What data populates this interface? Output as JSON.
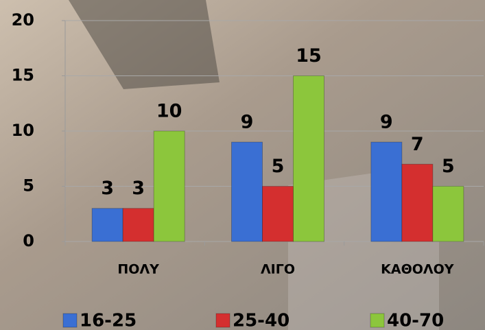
{
  "chart_data": {
    "type": "bar",
    "categories": [
      "ΠΟΛΥ",
      "ΛΙΓΟ",
      "ΚΑΘΟΛΟΥ"
    ],
    "series": [
      {
        "name": "16-25",
        "color": "#3a6fd3",
        "values": [
          3,
          9,
          9
        ]
      },
      {
        "name": "25-40",
        "color": "#d42f2f",
        "values": [
          3,
          5,
          7
        ]
      },
      {
        "name": "40-70",
        "color": "#8cc63c",
        "values": [
          10,
          15,
          5
        ]
      }
    ],
    "ylim": [
      0,
      20
    ],
    "yticks": [
      0,
      5,
      10,
      15,
      20
    ],
    "grid": true,
    "legend": "bottom"
  }
}
